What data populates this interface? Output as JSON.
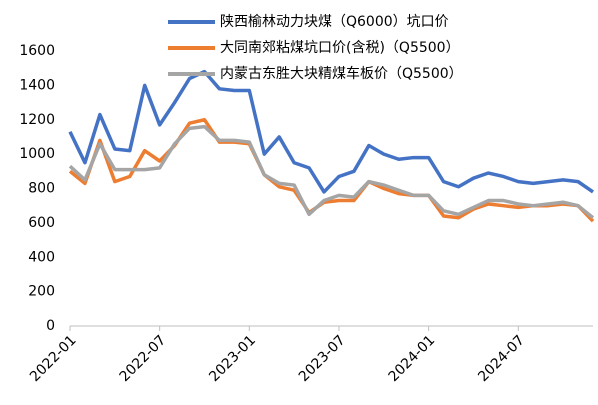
{
  "chart_data": {
    "type": "line",
    "x": [
      "2022-01",
      "2022-02",
      "2022-03",
      "2022-04",
      "2022-05",
      "2022-06",
      "2022-07",
      "2022-08",
      "2022-09",
      "2022-10",
      "2022-11",
      "2022-12",
      "2023-01",
      "2023-02",
      "2023-03",
      "2023-04",
      "2023-05",
      "2023-06",
      "2023-07",
      "2023-08",
      "2023-09",
      "2023-10",
      "2023-11",
      "2023-12",
      "2024-01",
      "2024-02",
      "2024-03",
      "2024-04",
      "2024-05",
      "2024-06",
      "2024-07",
      "2024-08",
      "2024-09",
      "2024-10",
      "2024-11",
      "2024-12"
    ],
    "series": [
      {
        "name": "陕西榆林动力块煤（Q6000）坑口价",
        "color": "#4472c4",
        "values": [
          1130,
          950,
          1230,
          1030,
          1020,
          1400,
          1170,
          1300,
          1440,
          1480,
          1380,
          1370,
          1370,
          1000,
          1100,
          950,
          920,
          780,
          870,
          900,
          1050,
          1000,
          970,
          980,
          980,
          840,
          810,
          860,
          890,
          870,
          840,
          830,
          840,
          850,
          840,
          780
        ]
      },
      {
        "name": "大同南郊粘煤坑口价(含税)（Q5500）",
        "color": "#ed7d31",
        "values": [
          900,
          830,
          1080,
          840,
          870,
          1020,
          960,
          1050,
          1180,
          1200,
          1070,
          1070,
          1060,
          880,
          810,
          790,
          660,
          720,
          730,
          730,
          840,
          800,
          770,
          760,
          760,
          640,
          630,
          680,
          710,
          700,
          690,
          700,
          700,
          710,
          700,
          610
        ]
      },
      {
        "name": "内蒙古东胜大块精煤车板价（Q5500）",
        "color": "#a5a5a5",
        "values": [
          930,
          850,
          1060,
          910,
          910,
          910,
          920,
          1060,
          1150,
          1160,
          1080,
          1080,
          1070,
          880,
          830,
          820,
          650,
          730,
          760,
          750,
          840,
          820,
          790,
          760,
          760,
          670,
          650,
          690,
          730,
          730,
          710,
          700,
          710,
          720,
          700,
          630
        ]
      }
    ],
    "xlim": [
      "2022-01",
      "2024-12"
    ],
    "xticks": [
      "2022-01",
      "2022-07",
      "2023-01",
      "2023-07",
      "2024-01",
      "2024-07"
    ],
    "ylim": [
      0,
      1600
    ],
    "yticks": [
      0,
      200,
      400,
      600,
      800,
      1000,
      1200,
      1400,
      1600
    ]
  }
}
